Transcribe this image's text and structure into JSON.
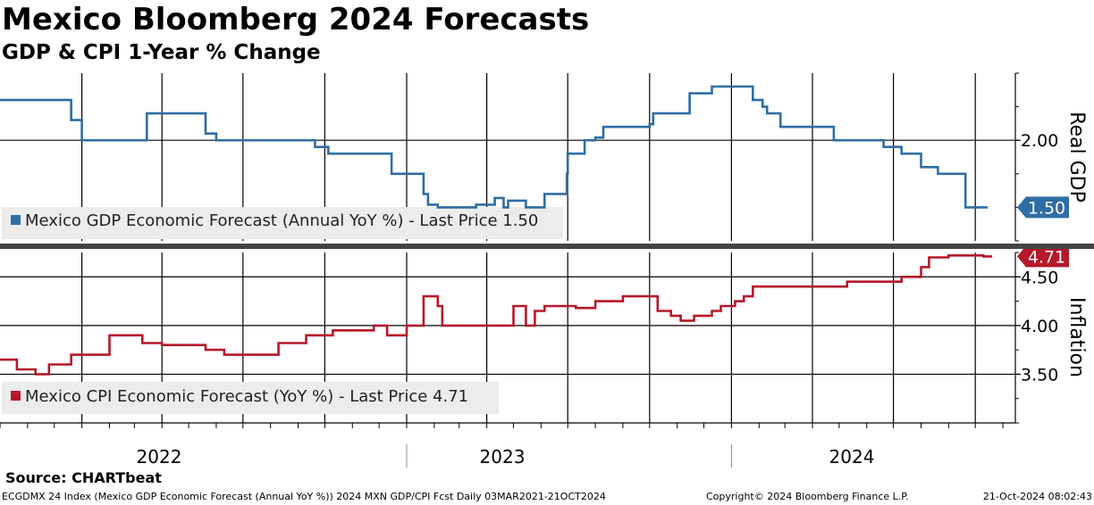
{
  "title": "Mexico Bloomberg 2024 Forecasts",
  "subtitle": "GDP & CPI 1-Year % Change",
  "source": "Source: CHARTbeat",
  "footer": {
    "left": "ECGDMX 24 Index (Mexico GDP Economic Forecast (Annual YoY %)) 2024 MXN GDP/CPI Fcst  Daily 03MAR2021-21OCT2024",
    "copyright": "Copyright© 2024 Bloomberg Finance L.P.",
    "timestamp": "21-Oct-2024 08:02:43"
  },
  "chart_data": {
    "type": "line",
    "x_range": [
      "2021-10-01",
      "2024-11-15"
    ],
    "year_labels": [
      "2022",
      "2023",
      "2024"
    ],
    "panels": [
      {
        "axis_label": "Real GDP",
        "ylim": [
          1.25,
          2.5
        ],
        "ticks": [
          2.0
        ],
        "tick_labels": [
          "2.00"
        ],
        "grid": true,
        "color": "#2e6da4",
        "legend": "Mexico GDP Economic Forecast (Annual YoY %) - Last Price 1.50",
        "last_price": 1.5,
        "last_price_label": "1.50",
        "x": [
          "2021-10-01",
          "2021-12-20",
          "2022-01-01",
          "2022-03-15",
          "2022-03-25",
          "2022-05-20",
          "2022-06-01",
          "2022-08-01",
          "2022-09-20",
          "2022-10-05",
          "2022-12-01",
          "2022-12-15",
          "2023-01-05",
          "2023-01-20",
          "2023-01-25",
          "2023-02-05",
          "2023-03-10",
          "2023-03-20",
          "2023-04-10",
          "2023-04-20",
          "2023-04-25",
          "2023-05-15",
          "2023-06-01",
          "2023-06-05",
          "2023-06-30",
          "2023-07-01",
          "2023-07-20",
          "2023-08-01",
          "2023-08-10",
          "2023-10-01",
          "2023-10-05",
          "2023-11-01",
          "2023-11-15",
          "2023-12-10",
          "2024-01-05",
          "2024-01-25",
          "2024-02-05",
          "2024-02-10",
          "2024-02-25",
          "2024-03-15",
          "2024-04-25",
          "2024-05-10",
          "2024-06-20",
          "2024-07-10",
          "2024-08-01",
          "2024-08-20",
          "2024-09-10",
          "2024-09-20",
          "2024-10-15"
        ],
        "values": [
          2.3,
          2.15,
          2.0,
          2.2,
          2.2,
          2.05,
          2.0,
          2.0,
          1.95,
          1.9,
          1.9,
          1.75,
          1.75,
          1.6,
          1.52,
          1.5,
          1.5,
          1.52,
          1.57,
          1.5,
          1.55,
          1.5,
          1.5,
          1.6,
          1.75,
          1.9,
          2.0,
          2.02,
          2.1,
          2.12,
          2.2,
          2.2,
          2.35,
          2.4,
          2.4,
          2.3,
          2.25,
          2.2,
          2.1,
          2.1,
          2.0,
          2.0,
          1.95,
          1.9,
          1.8,
          1.75,
          1.75,
          1.5,
          1.5
        ]
      },
      {
        "axis_label": "Inflation",
        "ylim": [
          3.0,
          4.75
        ],
        "ticks": [
          3.5,
          4.0,
          4.5
        ],
        "tick_labels": [
          "3.50",
          "4.00",
          "4.50"
        ],
        "grid": true,
        "color": "#b5182a",
        "legend": "Mexico CPI Economic Forecast (YoY %) - Last Price 4.71",
        "last_price": 4.71,
        "last_price_label": "4.71",
        "x": [
          "2021-10-01",
          "2021-10-20",
          "2021-11-10",
          "2021-11-25",
          "2021-12-20",
          "2022-02-01",
          "2022-03-10",
          "2022-04-01",
          "2022-05-20",
          "2022-06-10",
          "2022-08-10",
          "2022-09-10",
          "2022-10-10",
          "2022-11-25",
          "2022-12-01",
          "2022-12-10",
          "2023-01-01",
          "2023-01-20",
          "2023-01-30",
          "2023-02-05",
          "2023-02-10",
          "2023-02-20",
          "2023-05-01",
          "2023-05-15",
          "2023-05-25",
          "2023-06-05",
          "2023-06-25",
          "2023-07-10",
          "2023-08-01",
          "2023-09-01",
          "2023-09-15",
          "2023-10-10",
          "2023-10-25",
          "2023-11-05",
          "2023-11-20",
          "2023-12-10",
          "2023-12-20",
          "2024-01-05",
          "2024-01-15",
          "2024-01-25",
          "2024-02-10",
          "2024-04-25",
          "2024-05-10",
          "2024-07-10",
          "2024-07-20",
          "2024-08-01",
          "2024-08-10",
          "2024-09-01",
          "2024-09-20",
          "2024-10-10",
          "2024-10-20"
        ],
        "values": [
          3.65,
          3.55,
          3.5,
          3.6,
          3.7,
          3.9,
          3.82,
          3.8,
          3.75,
          3.7,
          3.82,
          3.9,
          3.95,
          4.0,
          4.0,
          3.9,
          4.0,
          4.3,
          4.3,
          4.2,
          4.0,
          4.0,
          4.2,
          4.0,
          4.15,
          4.2,
          4.2,
          4.18,
          4.25,
          4.3,
          4.3,
          4.15,
          4.1,
          4.05,
          4.1,
          4.15,
          4.2,
          4.25,
          4.3,
          4.4,
          4.4,
          4.4,
          4.45,
          4.5,
          4.5,
          4.6,
          4.7,
          4.72,
          4.72,
          4.71,
          4.71
        ]
      }
    ]
  }
}
